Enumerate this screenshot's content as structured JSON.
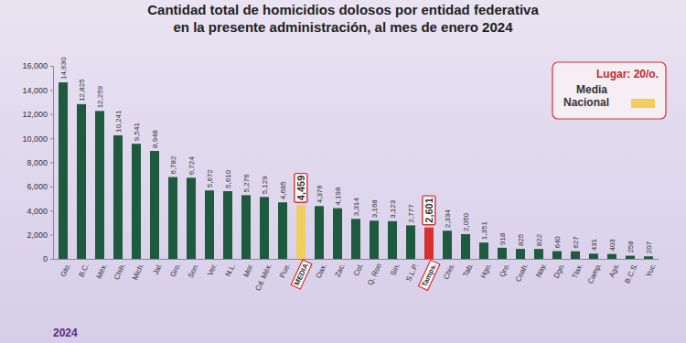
{
  "chart_data": {
    "type": "bar",
    "title": [
      "Cantidad total de homicidios dolosos por entidad federativa",
      "en la presente administración, al mes de enero 2024"
    ],
    "legend_title": "Lugar: 20/o.",
    "legend_label": "Media Nacional",
    "legend_color": "#f0cf5e",
    "footer": "2024",
    "categories": [
      "Gto.",
      "B.C.",
      "Méx.",
      "Chih.",
      "Mich.",
      "Jal.",
      "Gro.",
      "Son.",
      "Ver.",
      "N.L.",
      "Mor.",
      "Cd. Méx.",
      "Pue.",
      "MEDIA",
      "Oax.",
      "Zac.",
      "Col.",
      "Q. Roo",
      "Sin.",
      "S.L.P.",
      "Tamps.",
      "Chis.",
      "Tab.",
      "Hgo.",
      "Qro.",
      "Coah.",
      "Nay.",
      "Dgo.",
      "Tlax.",
      "Camp.",
      "Ags.",
      "B.C.S.",
      "Yuc."
    ],
    "values": [
      14630,
      12825,
      12259,
      10241,
      9541,
      8948,
      6782,
      6724,
      5672,
      5610,
      5276,
      5129,
      4685,
      4459,
      4376,
      4198,
      3314,
      3168,
      3123,
      2777,
      2601,
      2334,
      2050,
      1351,
      918,
      825,
      822,
      640,
      627,
      431,
      403,
      258,
      207
    ],
    "value_labels": [
      "14,630",
      "12,825",
      "12,259",
      "10,241",
      "9,541",
      "8,948",
      "6,782",
      "6,724",
      "5,672",
      "5,610",
      "5,276",
      "5,129",
      "4,685",
      "4,459",
      "4,376",
      "4,198",
      "3,314",
      "3,168",
      "3,123",
      "2,777",
      "2,601",
      "2,334",
      "2,050",
      "1,351",
      "918",
      "825",
      "822",
      "640",
      "627",
      "431",
      "403",
      "258",
      "207"
    ],
    "colors": [
      "#1e5b3e",
      "#1e5b3e",
      "#1e5b3e",
      "#1e5b3e",
      "#1e5b3e",
      "#1e5b3e",
      "#1e5b3e",
      "#1e5b3e",
      "#1e5b3e",
      "#1e5b3e",
      "#1e5b3e",
      "#1e5b3e",
      "#1e5b3e",
      "#f0cf5e",
      "#1e5b3e",
      "#1e5b3e",
      "#1e5b3e",
      "#1e5b3e",
      "#1e5b3e",
      "#1e5b3e",
      "#d8302e",
      "#1e5b3e",
      "#1e5b3e",
      "#1e5b3e",
      "#1e5b3e",
      "#1e5b3e",
      "#1e5b3e",
      "#1e5b3e",
      "#1e5b3e",
      "#1e5b3e",
      "#1e5b3e",
      "#1e5b3e",
      "#1e5b3e"
    ],
    "ylim": [
      0,
      16000
    ],
    "yticks": [
      0,
      {
        "value": 2000,
        "label": "2,000"
      },
      {
        "value": 4000,
        "label": "4,000"
      },
      {
        "value": 6000,
        "label": "6,000"
      },
      {
        "value": 8000,
        "label": "8,000"
      },
      {
        "value": 10000,
        "label": "10,000"
      },
      {
        "value": 12000,
        "label": "12,000"
      },
      {
        "value": 14000,
        "label": "14,000"
      },
      {
        "value": 16000,
        "label": "16,000"
      }
    ],
    "grid": false,
    "data_labels": true
  }
}
